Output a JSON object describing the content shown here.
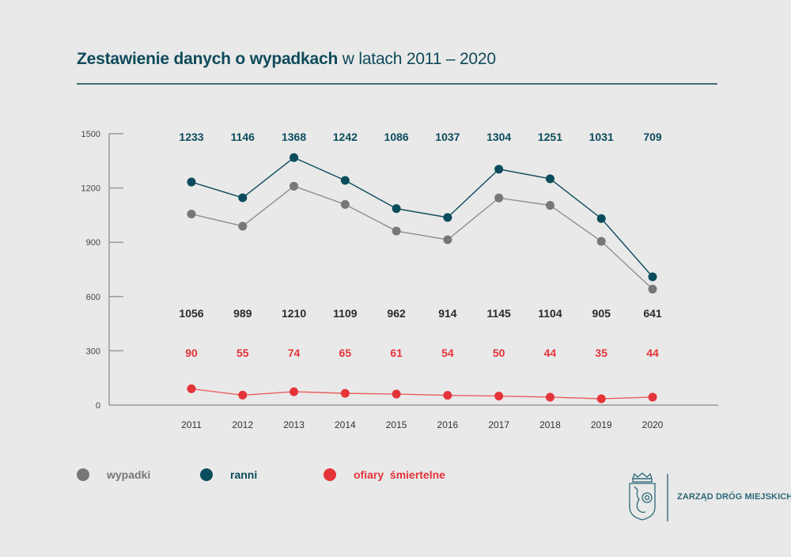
{
  "header": {
    "title_bold": "Zestawienie danych o wypadkach",
    "title_regular": "w latach 2011 – 2020"
  },
  "colors": {
    "wypadki": "#777777",
    "ranni": "#0b4c5c",
    "ofiary": "#e4343a",
    "wypadki_label": "#2a2a2a",
    "axis": "#9a9a9a"
  },
  "chart_data": {
    "type": "line",
    "title": "Zestawienie danych o wypadkach w latach 2011 – 2020",
    "xlabel": "",
    "ylabel": "",
    "ylim": [
      0,
      1500
    ],
    "yticks": [
      0,
      300,
      600,
      900,
      1200,
      1500
    ],
    "grid": false,
    "legend": "bottom-left",
    "categories": [
      "2011",
      "2012",
      "2013",
      "2014",
      "2015",
      "2016",
      "2017",
      "2018",
      "2019",
      "2020"
    ],
    "series": [
      {
        "name": "ranni",
        "values": [
          1233,
          1146,
          1368,
          1242,
          1086,
          1037,
          1304,
          1251,
          1031,
          709
        ]
      },
      {
        "name": "wypadki",
        "values": [
          1056,
          989,
          1210,
          1109,
          962,
          914,
          1145,
          1104,
          905,
          641
        ]
      },
      {
        "name": "ofiary śmiertelne",
        "values": [
          90,
          55,
          74,
          65,
          61,
          54,
          50,
          44,
          35,
          44
        ]
      }
    ]
  },
  "legend": {
    "wypadki": "wypadki",
    "ranni": "ranni",
    "ofiary": "ofiary  śmiertelne"
  },
  "logo": {
    "text": "ZARZĄD DRÓG MIEJSKICH"
  }
}
